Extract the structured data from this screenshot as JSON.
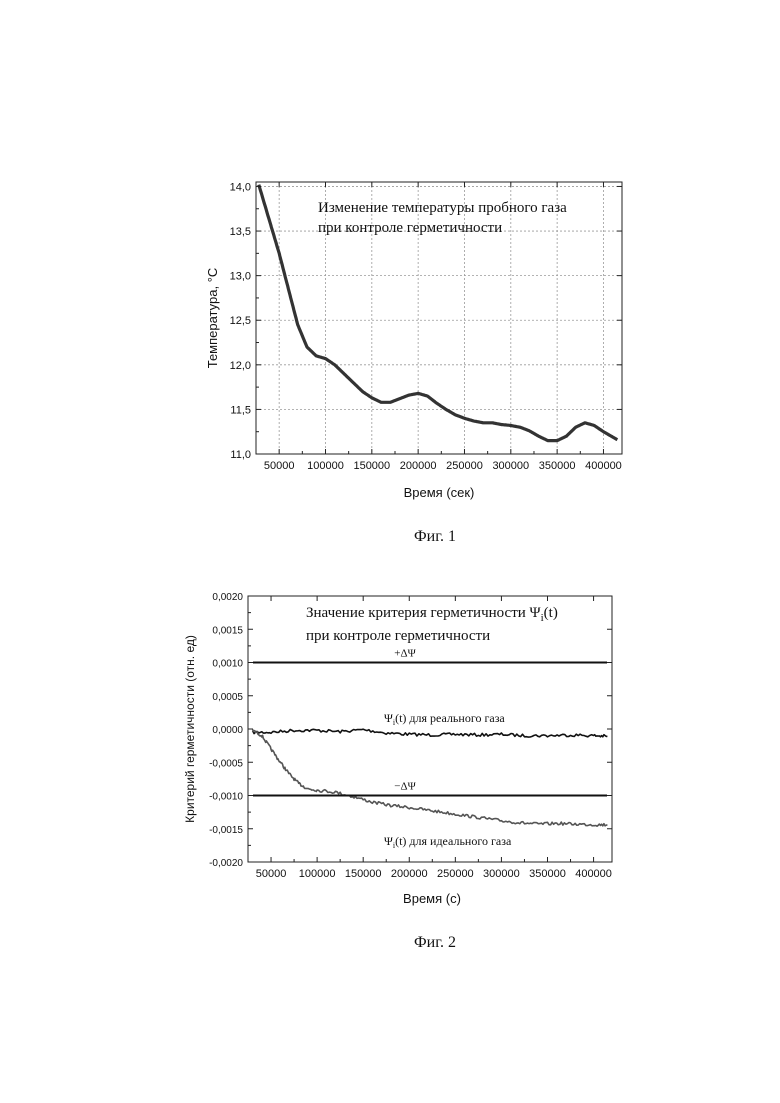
{
  "figures": {
    "fig1_caption": "Фиг. 1",
    "fig2_caption": "Фиг. 2"
  },
  "chart_data": [
    {
      "id": "fig1",
      "type": "line",
      "title": "Изменение температуры пробного газа",
      "subtitle": "при контроле герметичности",
      "xlabel": "Время (сек)",
      "ylabel": "Температура, °C",
      "xlim": [
        25000,
        420000
      ],
      "ylim": [
        11.0,
        14.05
      ],
      "grid": true,
      "x_ticks": [
        50000,
        100000,
        150000,
        200000,
        250000,
        300000,
        350000,
        400000
      ],
      "x_tick_labels": [
        "50000",
        "100000",
        "150000",
        "200000",
        "250000",
        "300000",
        "350000",
        "400000"
      ],
      "y_ticks": [
        11.0,
        11.5,
        12.0,
        12.5,
        13.0,
        13.5,
        14.0
      ],
      "y_tick_labels": [
        "11,0",
        "11,5",
        "12,0",
        "12,5",
        "13,0",
        "13,5",
        "14,0"
      ],
      "series": [
        {
          "color": "#333333",
          "x": [
            28000,
            40000,
            50000,
            60000,
            70000,
            80000,
            90000,
            100000,
            110000,
            120000,
            130000,
            140000,
            150000,
            160000,
            170000,
            180000,
            190000,
            200000,
            210000,
            220000,
            230000,
            240000,
            250000,
            260000,
            270000,
            280000,
            290000,
            300000,
            310000,
            320000,
            330000,
            340000,
            350000,
            360000,
            370000,
            380000,
            390000,
            400000,
            410000,
            415000
          ],
          "y": [
            14.02,
            13.6,
            13.25,
            12.85,
            12.45,
            12.2,
            12.1,
            12.07,
            12.0,
            11.9,
            11.8,
            11.7,
            11.63,
            11.58,
            11.58,
            11.62,
            11.66,
            11.68,
            11.65,
            11.57,
            11.5,
            11.44,
            11.4,
            11.37,
            11.35,
            11.35,
            11.33,
            11.32,
            11.3,
            11.26,
            11.2,
            11.15,
            11.15,
            11.2,
            11.3,
            11.35,
            11.32,
            11.25,
            11.19,
            11.16
          ]
        }
      ]
    },
    {
      "id": "fig2",
      "type": "line",
      "title": "Значение критерия герметичности Ψ",
      "title_sub": "i",
      "title_suffix": "(t)",
      "subtitle": "при контроле герметичности",
      "xlabel": "Время (с)",
      "ylabel": "Критерий герметичности (отн. ед)",
      "xlim": [
        25000,
        420000
      ],
      "ylim": [
        -0.002,
        0.002
      ],
      "grid": false,
      "x_ticks": [
        50000,
        100000,
        150000,
        200000,
        250000,
        300000,
        350000,
        400000
      ],
      "x_tick_labels": [
        "50000",
        "100000",
        "150000",
        "200000",
        "250000",
        "300000",
        "350000",
        "400000"
      ],
      "y_ticks": [
        -0.002,
        -0.0015,
        -0.001,
        -0.0005,
        0.0,
        0.0005,
        0.001,
        0.0015,
        0.002
      ],
      "y_tick_labels": [
        "-0,0020",
        "-0,0015",
        "-0,0010",
        "-0,0005",
        "0,0000",
        "0,0005",
        "0,0010",
        "0,0015",
        "0,0020"
      ],
      "thresholds": [
        {
          "label": "+ΔΨ",
          "value": 0.001
        },
        {
          "label": "−ΔΨ",
          "value": -0.001
        }
      ],
      "annotations": {
        "real_label_pre": "Ψ",
        "real_label_sub": "i",
        "real_label_post": "(t) для реального газа",
        "ideal_label_pre": "Ψ",
        "ideal_label_sub": "i",
        "ideal_label_post": "(t) для идеального газа"
      },
      "series": [
        {
          "name": "Ψi(t) для реального газа",
          "color": "#111111",
          "x": [
            30000,
            50000,
            75000,
            100000,
            125000,
            150000,
            175000,
            200000,
            225000,
            250000,
            275000,
            300000,
            325000,
            350000,
            375000,
            400000,
            415000
          ],
          "y": [
            -5e-05,
            -5e-05,
            -2e-05,
            -2e-05,
            -4e-05,
            -1e-05,
            -6e-05,
            -8e-05,
            -9e-05,
            -8e-05,
            -9e-05,
            -8e-05,
            -0.0001,
            -0.0001,
            -9e-05,
            -0.0001,
            -0.00011
          ]
        },
        {
          "name": "Ψi(t) для идеального газа",
          "color": "#555555",
          "x": [
            30000,
            40000,
            50000,
            60000,
            70000,
            80000,
            90000,
            100000,
            120000,
            140000,
            160000,
            180000,
            200000,
            220000,
            240000,
            260000,
            280000,
            300000,
            320000,
            340000,
            360000,
            380000,
            400000,
            415000
          ],
          "y": [
            -2e-05,
            -0.0001,
            -0.0003,
            -0.0005,
            -0.00068,
            -0.00082,
            -0.0009,
            -0.00092,
            -0.00095,
            -0.00102,
            -0.0011,
            -0.00115,
            -0.00118,
            -0.00122,
            -0.00126,
            -0.0013,
            -0.00134,
            -0.00138,
            -0.00141,
            -0.00143,
            -0.00142,
            -0.00143,
            -0.00144,
            -0.00144
          ]
        }
      ]
    }
  ]
}
